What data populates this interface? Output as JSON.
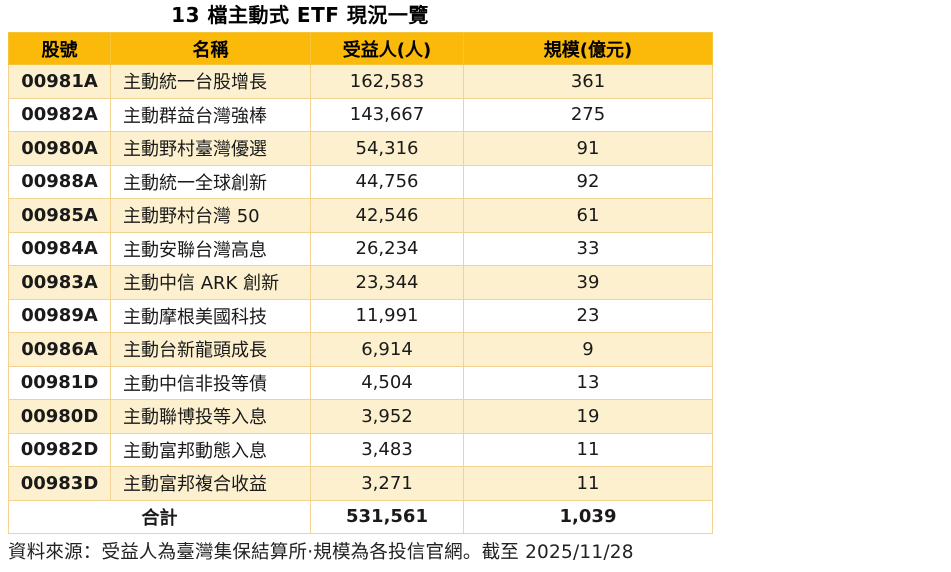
{
  "title": "13 檔主動式 ETF 現況一覽",
  "chart_data": {
    "type": "table",
    "title": "13 檔主動式 ETF 現況一覽",
    "columns": [
      "股號",
      "名稱",
      "受益人(人)",
      "規模(億元)"
    ],
    "rows": [
      [
        "00981A",
        "主動統一台股增長",
        "162,583",
        "361"
      ],
      [
        "00982A",
        "主動群益台灣強棒",
        "143,667",
        "275"
      ],
      [
        "00980A",
        "主動野村臺灣優選",
        "54,316",
        "91"
      ],
      [
        "00988A",
        "主動統一全球創新",
        "44,756",
        "92"
      ],
      [
        "00985A",
        "主動野村台灣 50",
        "42,546",
        "61"
      ],
      [
        "00984A",
        "主動安聯台灣高息",
        "26,234",
        "33"
      ],
      [
        "00983A",
        "主動中信 ARK 創新",
        "23,344",
        "39"
      ],
      [
        "00989A",
        "主動摩根美國科技",
        "11,991",
        "23"
      ],
      [
        "00986A",
        "主動台新龍頭成長",
        "6,914",
        "9"
      ],
      [
        "00981D",
        "主動中信非投等債",
        "4,504",
        "13"
      ],
      [
        "00980D",
        "主動聯博投等入息",
        "3,952",
        "19"
      ],
      [
        "00982D",
        "主動富邦動態入息",
        "3,483",
        "11"
      ],
      [
        "00983D",
        "主動富邦複合收益",
        "3,271",
        "11"
      ]
    ],
    "holders_numeric": [
      162583,
      143667,
      54316,
      44756,
      42546,
      26234,
      23344,
      11991,
      6914,
      4504,
      3952,
      3483,
      3271
    ],
    "aum_numeric": [
      361,
      275,
      91,
      92,
      61,
      33,
      39,
      23,
      9,
      13,
      19,
      11,
      11
    ],
    "total_row": {
      "label": "合計",
      "holders": "531,561",
      "aum": "1,039"
    },
    "total_holders": 531561,
    "total_aum": 1039
  },
  "footer": {
    "source_note": "資料來源：受益人為臺灣集保結算所·規模為各投信官網。截至 2025/11/28"
  },
  "colors": {
    "header_bg": "#FBB90A",
    "row_alt_bg": "#FCF0CF",
    "row_bg": "#FFFFFF",
    "border_light": "#F3D292",
    "border_outer": "#F0C264",
    "text": "#1A1A1A"
  }
}
